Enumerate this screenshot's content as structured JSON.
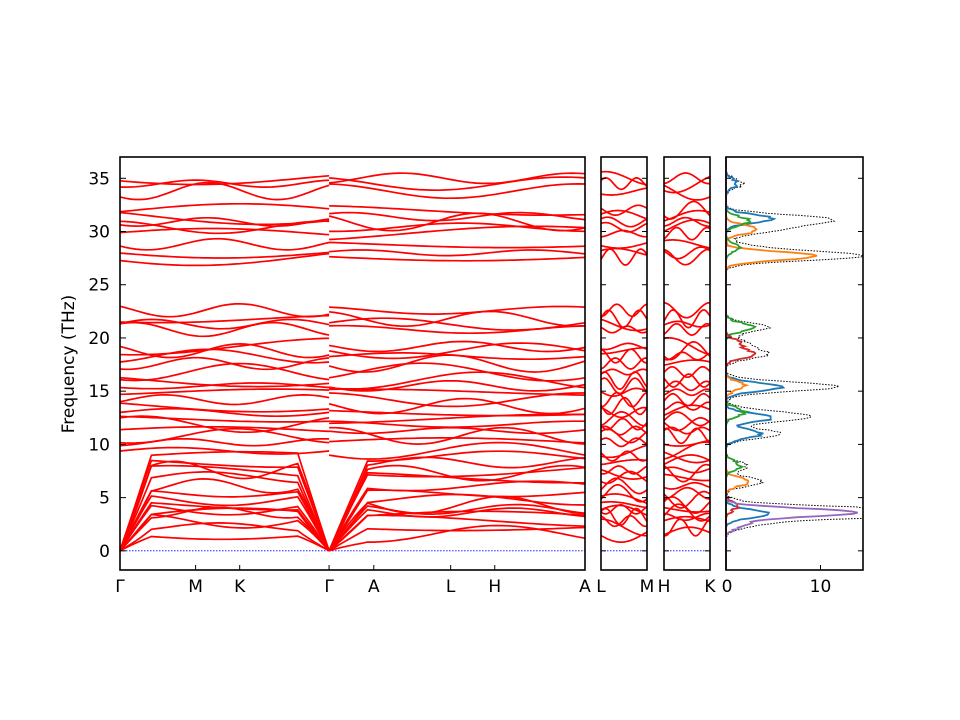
{
  "chart_data": {
    "type": "line",
    "ylabel": "Frequency (THz)",
    "ylim": [
      -1.8,
      37
    ],
    "yticks": [
      0,
      5,
      10,
      15,
      20,
      25,
      30,
      35
    ],
    "grid": false,
    "band_color": "#ff0000",
    "zero_line_color": "#0000ff",
    "dos_total_color": "#000000",
    "panels": [
      {
        "id": "path-1",
        "ticks": [
          "Γ",
          "M",
          "K",
          "Γ",
          "A",
          "L",
          "H",
          "A"
        ],
        "tick_positions": [
          0,
          0.1626,
          0.2574,
          0.4496,
          0.5458,
          0.7111,
          0.8059,
          1.0
        ]
      },
      {
        "id": "path-2",
        "ticks": [
          "L",
          "M"
        ],
        "tick_positions": [
          0,
          1.0
        ]
      },
      {
        "id": "path-3",
        "ticks": [
          "H",
          "K"
        ],
        "tick_positions": [
          0,
          1.0
        ]
      },
      {
        "id": "dos",
        "xlim": [
          0,
          14.5
        ],
        "xticks": [
          0,
          10
        ]
      }
    ],
    "band_levels_THz": [
      0.0,
      1.6,
      2.2,
      2.8,
      3.2,
      3.6,
      3.9,
      4.3,
      4.8,
      5.4,
      6.1,
      6.9,
      7.3,
      7.6,
      8.3,
      8.9,
      9.4,
      10.2,
      10.8,
      11.3,
      11.9,
      12.4,
      13.0,
      13.6,
      14.2,
      14.9,
      15.5,
      16.0,
      16.8,
      17.6,
      18.3,
      18.8,
      19.2,
      20.8,
      21.3,
      21.8,
      22.6,
      27.6,
      28.0,
      28.8,
      29.8,
      30.4,
      30.9,
      31.4,
      32.0,
      33.8,
      34.5,
      35.0
    ],
    "dos_series": [
      {
        "color": "#1f77b4",
        "peaks": [
          [
            3.5,
            4.5
          ],
          [
            11.0,
            3.8
          ],
          [
            12.5,
            5.0
          ],
          [
            15.4,
            6.0
          ],
          [
            31.2,
            5.0
          ],
          [
            34.5,
            1.2
          ]
        ]
      },
      {
        "color": "#ff7f0e",
        "peaks": [
          [
            6.5,
            2.5
          ],
          [
            15.5,
            2.0
          ],
          [
            27.7,
            9.5
          ],
          [
            30.2,
            3.5
          ]
        ]
      },
      {
        "color": "#2ca02c",
        "peaks": [
          [
            8.0,
            1.5
          ],
          [
            13.0,
            2.0
          ],
          [
            21.0,
            3.0
          ],
          [
            28.5,
            1.5
          ],
          [
            31.0,
            2.5
          ]
        ]
      },
      {
        "color": "#d62728",
        "peaks": [
          [
            4.2,
            1.2
          ],
          [
            18.5,
            3.0
          ],
          [
            19.5,
            1.5
          ]
        ]
      },
      {
        "color": "#9467bd",
        "peaks": [
          [
            3.6,
            13.8
          ],
          [
            2.5,
            2.0
          ]
        ]
      }
    ]
  }
}
